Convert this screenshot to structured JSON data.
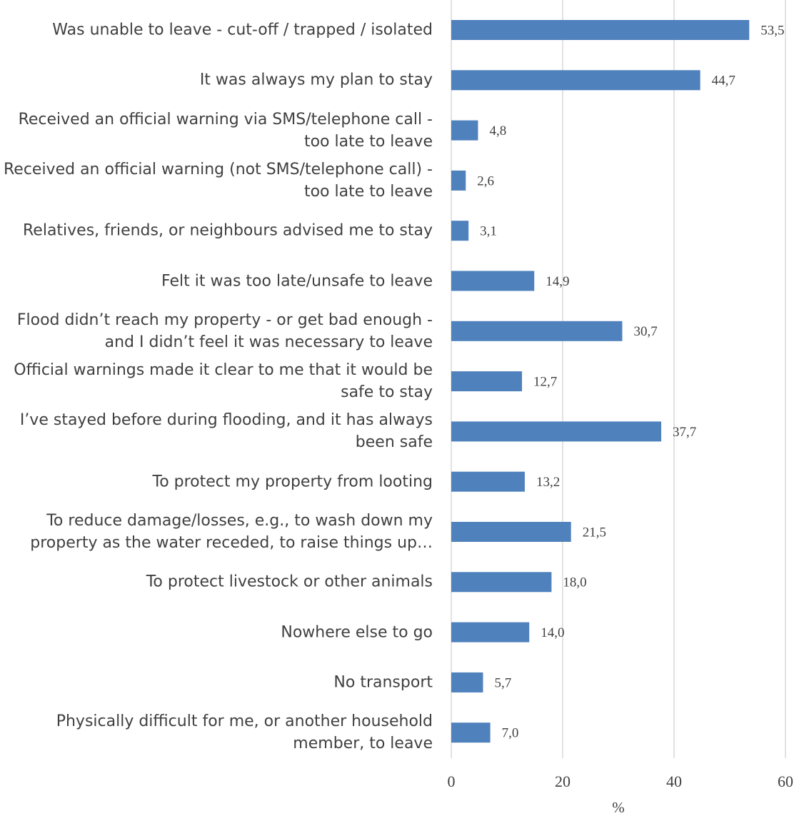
{
  "chart_data": {
    "type": "bar",
    "orientation": "horizontal",
    "categories": [
      "Was unable to leave - cut-off / trapped / isolated",
      "It was always my plan to stay",
      "Received an official warning via SMS/telephone call - too late to leave",
      "Received an official warning (not SMS/telephone call) - too late to leave",
      "Relatives, friends, or neighbours advised me to stay",
      "Felt it was too late/unsafe to leave",
      "Flood didn’t reach my property - or get bad enough - and I didn’t feel it was necessary to leave",
      "Official warnings made it clear to me that it would be safe to stay",
      "I’ve stayed before during flooding, and it has always been safe",
      "To protect my property from looting",
      "To reduce damage/losses, e.g., to wash down my property as the water receded, to raise things up…",
      "To protect livestock or other animals",
      "Nowhere else to go",
      "No transport",
      "Physically difficult for me, or another household member, to leave"
    ],
    "values": [
      53.5,
      44.7,
      4.8,
      2.6,
      3.1,
      14.9,
      30.7,
      12.7,
      37.7,
      13.2,
      21.5,
      18.0,
      14.0,
      5.7,
      7.0
    ],
    "value_labels": [
      "53,5",
      "44,7",
      "4,8",
      "2,6",
      "3,1",
      "14,9",
      "30,7",
      "12,7",
      "37,7",
      "13,2",
      "21,5",
      "18,0",
      "14,0",
      "5,7",
      "7,0"
    ],
    "color": "#4f81bd",
    "xlabel": "%",
    "xlim": [
      0,
      60
    ],
    "xticks": [
      0,
      20,
      40,
      60
    ],
    "grid": true
  }
}
